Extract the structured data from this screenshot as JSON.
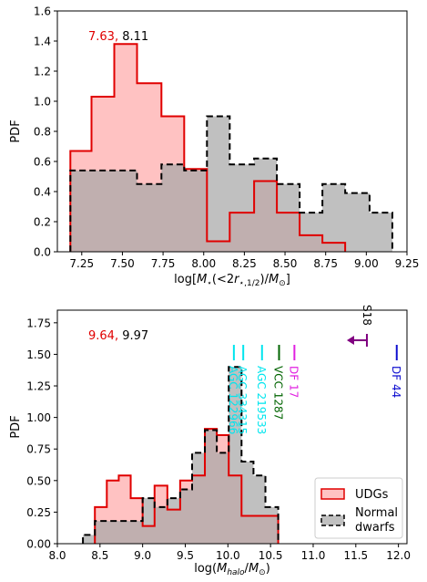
{
  "chart_data": [
    {
      "type": "histogram",
      "ylabel": "PDF",
      "xlabel": "log[M⋆(<2r⋆,1/2)/M⊙]",
      "xlim": [
        7.1,
        9.25
      ],
      "ylim": [
        0,
        1.6
      ],
      "xticks": [
        "7.25",
        "7.50",
        "7.75",
        "8.00",
        "8.25",
        "8.50",
        "8.75",
        "9.00",
        "9.25"
      ],
      "yticks": [
        "0.0",
        "0.2",
        "0.4",
        "0.6",
        "0.8",
        "1.0",
        "1.2",
        "1.4",
        "1.6"
      ],
      "annotation_red": "7.63,",
      "annotation_black": "8.11",
      "series": [
        {
          "color": "#e00000",
          "fill": "#ffaaaa",
          "style": "solid",
          "edges": [
            7.18,
            7.31,
            7.45,
            7.59,
            7.74,
            7.88,
            8.02,
            8.16,
            8.31,
            8.45,
            8.59,
            8.73,
            8.87
          ],
          "values": [
            0.67,
            1.03,
            1.38,
            1.12,
            0.9,
            0.55,
            0.07,
            0.26,
            0.47,
            0.26,
            0.11,
            0.06
          ]
        },
        {
          "color": "#000000",
          "fill": "#a8a8a8",
          "style": "dashed",
          "edges": [
            7.18,
            7.31,
            7.45,
            7.59,
            7.74,
            7.88,
            8.02,
            8.16,
            8.31,
            8.45,
            8.59,
            8.73,
            8.87,
            9.02,
            9.16
          ],
          "values": [
            0.54,
            0.54,
            0.54,
            0.45,
            0.58,
            0.54,
            0.9,
            0.58,
            0.62,
            0.45,
            0.26,
            0.45,
            0.39,
            0.26
          ]
        }
      ]
    },
    {
      "type": "histogram",
      "ylabel": "PDF",
      "xlabel": "log(Mhalo/M⊙)",
      "xlim": [
        8.0,
        12.1
      ],
      "ylim": [
        0,
        1.85
      ],
      "xticks": [
        "8.0",
        "8.5",
        "9.0",
        "9.5",
        "10.0",
        "10.5",
        "11.0",
        "11.5",
        "12.0"
      ],
      "yticks": [
        "0.00",
        "0.25",
        "0.50",
        "0.75",
        "1.00",
        "1.25",
        "1.50",
        "1.75"
      ],
      "annotation_red": "9.64,",
      "annotation_black": "9.97",
      "legend": [
        "UDGs",
        "Normal",
        "dwarfs"
      ],
      "series": [
        {
          "color": "#e00000",
          "fill": "#ffaaaa",
          "style": "solid",
          "edges": [
            8.44,
            8.58,
            8.72,
            8.86,
            9.0,
            9.14,
            9.29,
            9.44,
            9.58,
            9.73,
            9.87,
            10.01,
            10.16,
            10.3,
            10.44,
            10.59
          ],
          "values": [
            0.29,
            0.5,
            0.54,
            0.36,
            0.14,
            0.46,
            0.27,
            0.5,
            0.54,
            0.91,
            0.86,
            0.54,
            0.22,
            0.22,
            0.22
          ]
        },
        {
          "color": "#000000",
          "fill": "#a8a8a8",
          "style": "dashed",
          "edges": [
            8.3,
            8.44,
            8.58,
            8.72,
            8.86,
            9.0,
            9.14,
            9.29,
            9.44,
            9.58,
            9.73,
            9.87,
            10.01,
            10.16,
            10.3,
            10.44,
            10.59
          ],
          "values": [
            0.07,
            0.18,
            0.18,
            0.18,
            0.18,
            0.36,
            0.29,
            0.36,
            0.43,
            0.72,
            0.9,
            0.72,
            1.4,
            0.65,
            0.54,
            0.29
          ]
        }
      ],
      "galaxies": [
        {
          "name": "AGC 122966",
          "x": 10.07,
          "color": "#00e5ee"
        },
        {
          "name": "AGC 334315",
          "x": 10.18,
          "color": "#00e5ee"
        },
        {
          "name": "AGC 219533",
          "x": 10.4,
          "color": "#00e5ee"
        },
        {
          "name": "VCC 1287",
          "x": 10.6,
          "color": "#006400"
        },
        {
          "name": "DF 17",
          "x": 10.78,
          "color": "#e020e0"
        },
        {
          "name": "DF 44",
          "x": 11.98,
          "color": "#1010d0"
        },
        {
          "name": "S18",
          "x": 11.63,
          "color": "#800080",
          "limit": true
        }
      ]
    }
  ]
}
